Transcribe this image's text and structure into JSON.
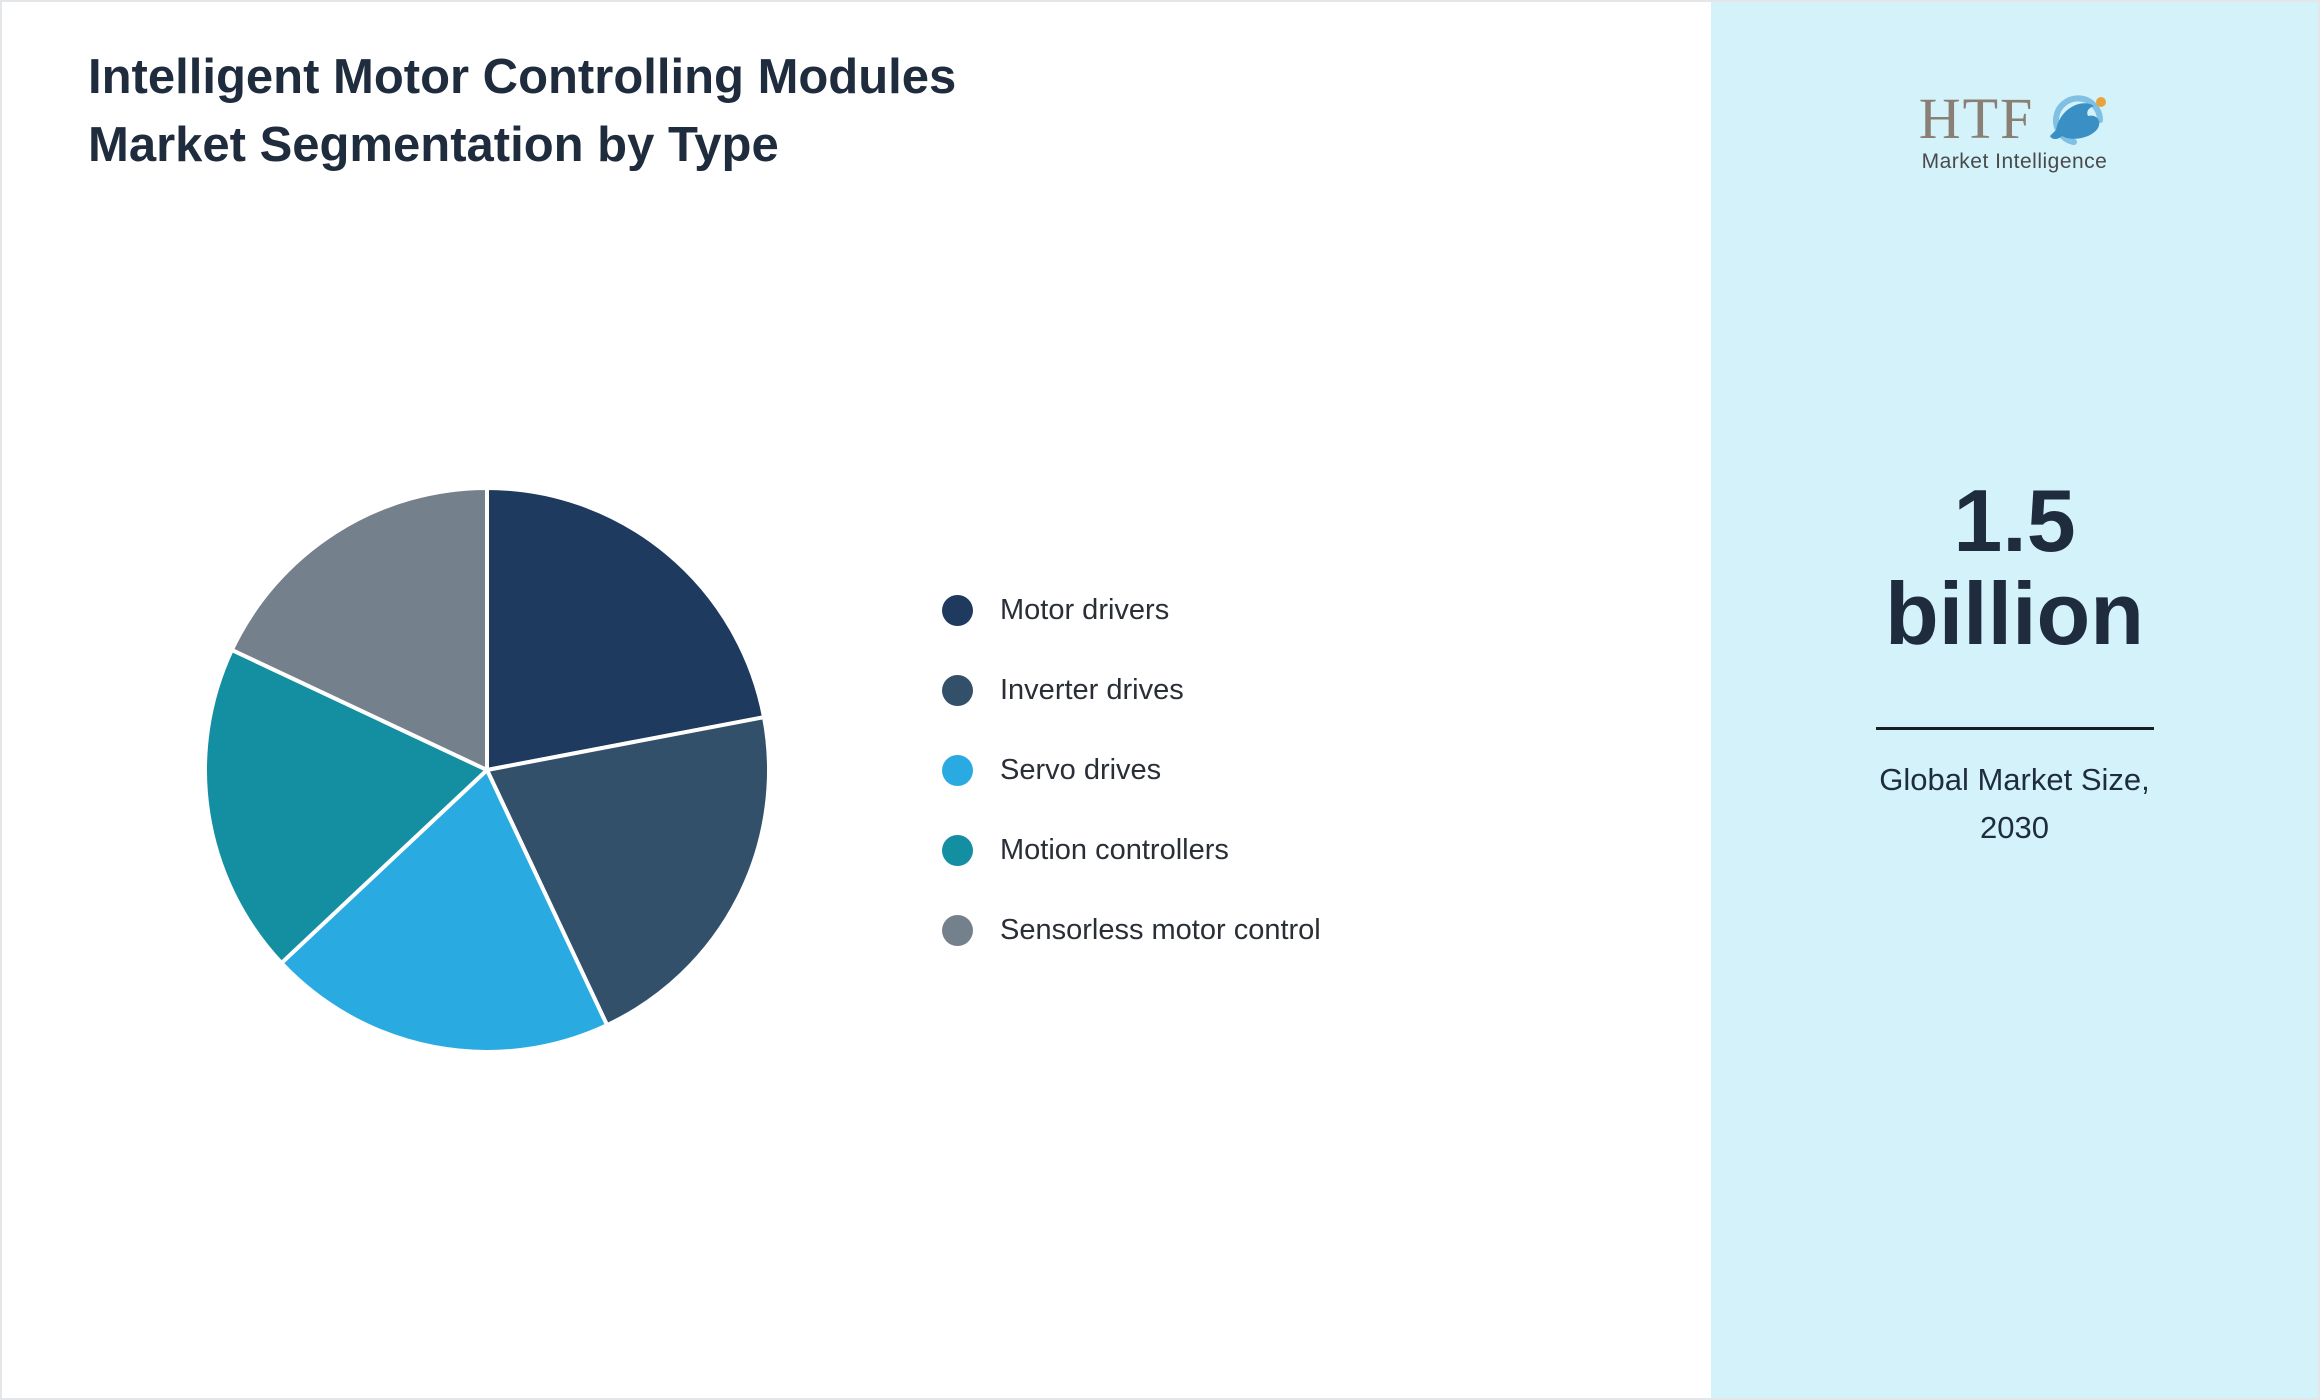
{
  "title": "Intelligent Motor Controlling Modules Market Segmentation by Type",
  "chart_data": {
    "type": "pie",
    "title": "Intelligent Motor Controlling Modules Market Segmentation by Type",
    "categories": [
      "Motor drivers",
      "Inverter drives",
      "Servo drives",
      "Motion controllers",
      "Sensorless motor control"
    ],
    "values": [
      22,
      21,
      20,
      19,
      18
    ],
    "colors": [
      "#1e3a5f",
      "#33506b",
      "#29abe2",
      "#148ea1",
      "#75808d"
    ],
    "legend_position": "right",
    "start_angle_deg": 0,
    "direction": "clockwise",
    "slice_border_color": "#ffffff"
  },
  "side_panel": {
    "logo_text": "HTF",
    "logo_icon": "dolphin-swirl-icon",
    "logo_subtext": "Market Intelligence",
    "market_size_value": "1.5 billion",
    "market_size_caption": "Global Market Size, 2030",
    "background_color": "#d3f2fa"
  },
  "colors": {
    "title_text": "#1f2c3d",
    "legend_text": "#2a2f36",
    "panel_background": "#d3f2fa"
  }
}
